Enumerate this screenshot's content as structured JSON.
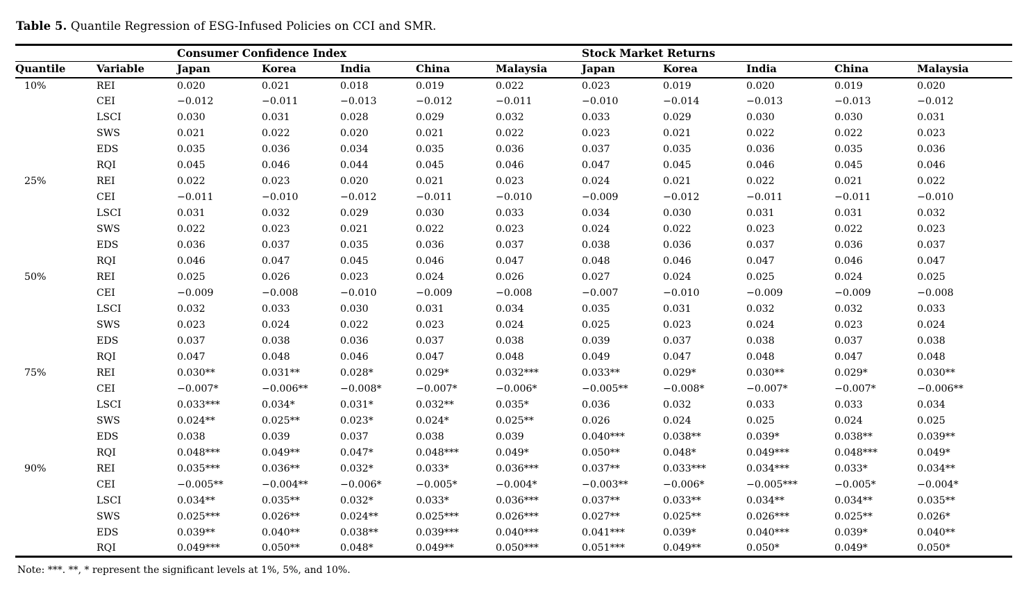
{
  "page": {
    "title_label": "Table 5.",
    "title_text": " Quantile Regression of ESG-Infused Policies on CCI and SMR.",
    "note": "Note: ***. **, * represent the significant levels at 1%, 5%, and 10%."
  },
  "table": {
    "group_headers": [
      "Consumer Confidence Index",
      "Stock Market Returns"
    ],
    "column_headers": [
      "Quantile",
      "Variable",
      "Japan",
      "Korea",
      "India",
      "China",
      "Malaysia",
      "Japan",
      "Korea",
      "India",
      "China",
      "Malaysia"
    ],
    "rows": [
      {
        "quantile": "10%",
        "variable": "REI",
        "values": [
          "0.020",
          "0.021",
          "0.018",
          "0.019",
          "0.022",
          "0.023",
          "0.019",
          "0.020",
          "0.019",
          "0.020"
        ]
      },
      {
        "quantile": "",
        "variable": "CEI",
        "values": [
          "−0.012",
          "−0.011",
          "−0.013",
          "−0.012",
          "−0.011",
          "−0.010",
          "−0.014",
          "−0.013",
          "−0.013",
          "−0.012"
        ]
      },
      {
        "quantile": "",
        "variable": "LSCI",
        "values": [
          "0.030",
          "0.031",
          "0.028",
          "0.029",
          "0.032",
          "0.033",
          "0.029",
          "0.030",
          "0.030",
          "0.031"
        ]
      },
      {
        "quantile": "",
        "variable": "SWS",
        "values": [
          "0.021",
          "0.022",
          "0.020",
          "0.021",
          "0.022",
          "0.023",
          "0.021",
          "0.022",
          "0.022",
          "0.023"
        ]
      },
      {
        "quantile": "",
        "variable": "EDS",
        "values": [
          "0.035",
          "0.036",
          "0.034",
          "0.035",
          "0.036",
          "0.037",
          "0.035",
          "0.036",
          "0.035",
          "0.036"
        ]
      },
      {
        "quantile": "",
        "variable": "RQI",
        "values": [
          "0.045",
          "0.046",
          "0.044",
          "0.045",
          "0.046",
          "0.047",
          "0.045",
          "0.046",
          "0.045",
          "0.046"
        ]
      },
      {
        "quantile": "25%",
        "variable": "REI",
        "values": [
          "0.022",
          "0.023",
          "0.020",
          "0.021",
          "0.023",
          "0.024",
          "0.021",
          "0.022",
          "0.021",
          "0.022"
        ]
      },
      {
        "quantile": "",
        "variable": "CEI",
        "values": [
          "−0.011",
          "−0.010",
          "−0.012",
          "−0.011",
          "−0.010",
          "−0.009",
          "−0.012",
          "−0.011",
          "−0.011",
          "−0.010"
        ]
      },
      {
        "quantile": "",
        "variable": "LSCI",
        "values": [
          "0.031",
          "0.032",
          "0.029",
          "0.030",
          "0.033",
          "0.034",
          "0.030",
          "0.031",
          "0.031",
          "0.032"
        ]
      },
      {
        "quantile": "",
        "variable": "SWS",
        "values": [
          "0.022",
          "0.023",
          "0.021",
          "0.022",
          "0.023",
          "0.024",
          "0.022",
          "0.023",
          "0.022",
          "0.023"
        ]
      },
      {
        "quantile": "",
        "variable": "EDS",
        "values": [
          "0.036",
          "0.037",
          "0.035",
          "0.036",
          "0.037",
          "0.038",
          "0.036",
          "0.037",
          "0.036",
          "0.037"
        ]
      },
      {
        "quantile": "",
        "variable": "RQI",
        "values": [
          "0.046",
          "0.047",
          "0.045",
          "0.046",
          "0.047",
          "0.048",
          "0.046",
          "0.047",
          "0.046",
          "0.047"
        ]
      },
      {
        "quantile": "50%",
        "variable": "REI",
        "values": [
          "0.025",
          "0.026",
          "0.023",
          "0.024",
          "0.026",
          "0.027",
          "0.024",
          "0.025",
          "0.024",
          "0.025"
        ]
      },
      {
        "quantile": "",
        "variable": "CEI",
        "values": [
          "−0.009",
          "−0.008",
          "−0.010",
          "−0.009",
          "−0.008",
          "−0.007",
          "−0.010",
          "−0.009",
          "−0.009",
          "−0.008"
        ]
      },
      {
        "quantile": "",
        "variable": "LSCI",
        "values": [
          "0.032",
          "0.033",
          "0.030",
          "0.031",
          "0.034",
          "0.035",
          "0.031",
          "0.032",
          "0.032",
          "0.033"
        ]
      },
      {
        "quantile": "",
        "variable": "SWS",
        "values": [
          "0.023",
          "0.024",
          "0.022",
          "0.023",
          "0.024",
          "0.025",
          "0.023",
          "0.024",
          "0.023",
          "0.024"
        ]
      },
      {
        "quantile": "",
        "variable": "EDS",
        "values": [
          "0.037",
          "0.038",
          "0.036",
          "0.037",
          "0.038",
          "0.039",
          "0.037",
          "0.038",
          "0.037",
          "0.038"
        ]
      },
      {
        "quantile": "",
        "variable": "RQI",
        "values": [
          "0.047",
          "0.048",
          "0.046",
          "0.047",
          "0.048",
          "0.049",
          "0.047",
          "0.048",
          "0.047",
          "0.048"
        ]
      },
      {
        "quantile": "75%",
        "variable": "REI",
        "values": [
          "0.030**",
          "0.031**",
          "0.028*",
          "0.029*",
          "0.032***",
          "0.033**",
          "0.029*",
          "0.030**",
          "0.029*",
          "0.030**"
        ]
      },
      {
        "quantile": "",
        "variable": "CEI",
        "values": [
          "−0.007*",
          "−0.006**",
          "−0.008*",
          "−0.007*",
          "−0.006*",
          "−0.005**",
          "−0.008*",
          "−0.007*",
          "−0.007*",
          "−0.006**"
        ]
      },
      {
        "quantile": "",
        "variable": "LSCI",
        "values": [
          "0.033***",
          "0.034*",
          "0.031*",
          "0.032**",
          "0.035*",
          "0.036",
          "0.032",
          "0.033",
          "0.033",
          "0.034"
        ]
      },
      {
        "quantile": "",
        "variable": "SWS",
        "values": [
          "0.024**",
          "0.025**",
          "0.023*",
          "0.024*",
          "0.025**",
          "0.026",
          "0.024",
          "0.025",
          "0.024",
          "0.025"
        ]
      },
      {
        "quantile": "",
        "variable": "EDS",
        "values": [
          "0.038",
          "0.039",
          "0.037",
          "0.038",
          "0.039",
          "0.040***",
          "0.038**",
          "0.039*",
          "0.038**",
          "0.039**"
        ]
      },
      {
        "quantile": "",
        "variable": "RQI",
        "values": [
          "0.048***",
          "0.049**",
          "0.047*",
          "0.048***",
          "0.049*",
          "0.050**",
          "0.048*",
          "0.049***",
          "0.048***",
          "0.049*"
        ]
      },
      {
        "quantile": "90%",
        "variable": "REI",
        "values": [
          "0.035***",
          "0.036**",
          "0.032*",
          "0.033*",
          "0.036***",
          "0.037**",
          "0.033***",
          "0.034***",
          "0.033*",
          "0.034**"
        ]
      },
      {
        "quantile": "",
        "variable": "CEI",
        "values": [
          "−0.005**",
          "−0.004**",
          "−0.006*",
          "−0.005*",
          "−0.004*",
          "−0.003**",
          "−0.006*",
          "−0.005***",
          "−0.005*",
          "−0.004*"
        ]
      },
      {
        "quantile": "",
        "variable": "LSCI",
        "values": [
          "0.034**",
          "0.035**",
          "0.032*",
          "0.033*",
          "0.036***",
          "0.037**",
          "0.033**",
          "0.034**",
          "0.034**",
          "0.035**"
        ]
      },
      {
        "quantile": "",
        "variable": "SWS",
        "values": [
          "0.025***",
          "0.026**",
          "0.024**",
          "0.025***",
          "0.026***",
          "0.027**",
          "0.025**",
          "0.026***",
          "0.025**",
          "0.026*"
        ]
      },
      {
        "quantile": "",
        "variable": "EDS",
        "values": [
          "0.039**",
          "0.040**",
          "0.038**",
          "0.039***",
          "0.040***",
          "0.041***",
          "0.039*",
          "0.040***",
          "0.039*",
          "0.040**"
        ]
      },
      {
        "quantile": "",
        "variable": "RQI",
        "values": [
          "0.049***",
          "0.050**",
          "0.048*",
          "0.049**",
          "0.050***",
          "0.051***",
          "0.049**",
          "0.050*",
          "0.049*",
          "0.050*"
        ]
      }
    ]
  }
}
